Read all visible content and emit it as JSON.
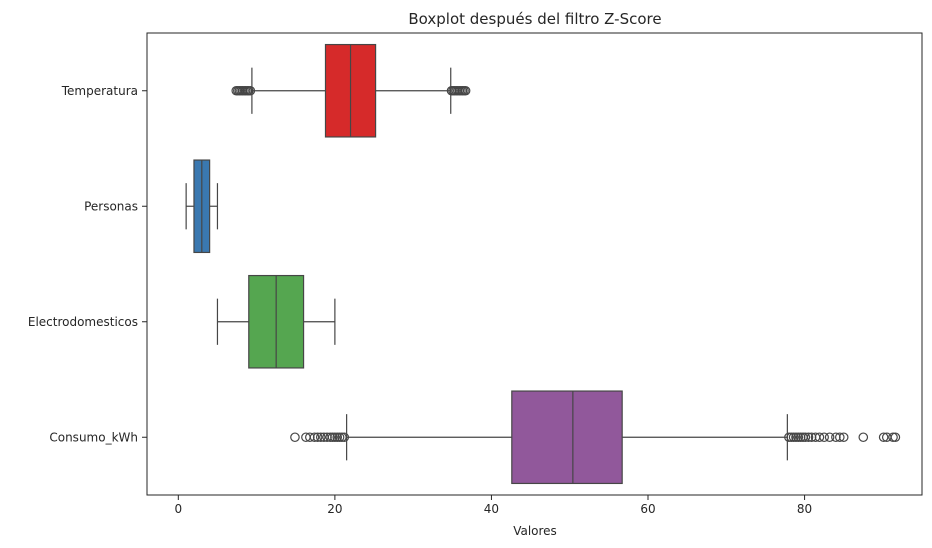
{
  "chart_data": {
    "type": "boxplot",
    "orientation": "horizontal",
    "title": "Boxplot después del filtro Z-Score",
    "xlabel": "Valores",
    "ylabel": "",
    "xlim": [
      -4,
      95
    ],
    "xticks": [
      0,
      20,
      40,
      60,
      80
    ],
    "xtick_labels": [
      "0",
      "20",
      "40",
      "60",
      "80"
    ],
    "grid": false,
    "legend": "none",
    "series": [
      {
        "name": "Temperatura",
        "color": "#d62a2a",
        "whisker_low": 9.4,
        "q1": 18.8,
        "median": 22.0,
        "q3": 25.2,
        "whisker_high": 34.8,
        "outliers": [
          7.4,
          7.6,
          7.8,
          8.0,
          8.2,
          8.4,
          8.6,
          8.8,
          9.0,
          9.2,
          34.9,
          35.1,
          35.3,
          35.5,
          35.7,
          35.9,
          36.1,
          36.3,
          36.5,
          36.7
        ]
      },
      {
        "name": "Personas",
        "color": "#3a78b0",
        "whisker_low": 1,
        "q1": 2,
        "median": 3,
        "q3": 4,
        "whisker_high": 5,
        "outliers": []
      },
      {
        "name": "Electrodomesticos",
        "color": "#55a650",
        "whisker_low": 5,
        "q1": 9,
        "median": 12.5,
        "q3": 16,
        "whisker_high": 20,
        "outliers": []
      },
      {
        "name": "Consumo_kWh",
        "color": "#91589b",
        "whisker_low": 21.5,
        "q1": 42.6,
        "median": 50.4,
        "q3": 56.7,
        "whisker_high": 77.8,
        "outliers": [
          14.9,
          16.3,
          16.8,
          17.4,
          17.8,
          18.2,
          18.6,
          19.0,
          19.4,
          19.7,
          20.0,
          20.3,
          20.6,
          20.9,
          21.2,
          78.0,
          78.3,
          78.6,
          78.9,
          79.2,
          79.5,
          79.8,
          80.1,
          80.5,
          80.9,
          81.4,
          81.9,
          82.5,
          83.2,
          84.0,
          84.5,
          85.0,
          87.5,
          90.1,
          90.5,
          91.3,
          91.6
        ]
      }
    ]
  }
}
